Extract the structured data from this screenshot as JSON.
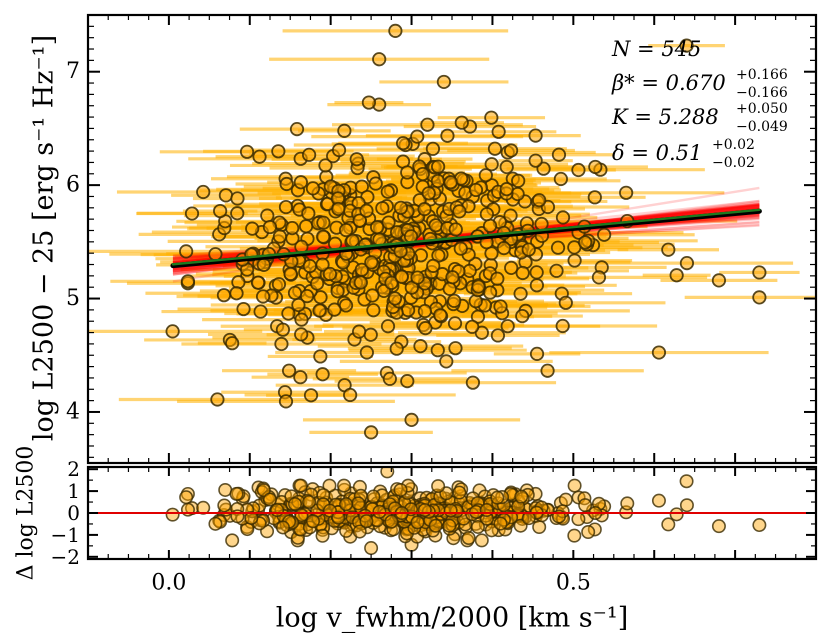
{
  "chart_data": [
    {
      "type": "scatter",
      "panel": "main",
      "ylabel": "log L2500 − 25 [erg s⁻¹ Hz⁻¹]",
      "xlim": [
        -0.1,
        0.8
      ],
      "ylim": [
        3.55,
        7.5
      ],
      "y_ticks": [
        {
          "value": 4,
          "label": "4"
        },
        {
          "value": 5,
          "label": "5"
        },
        {
          "value": 6,
          "label": "6"
        },
        {
          "value": 7,
          "label": "7"
        }
      ],
      "annotations": {
        "n": "N = 545",
        "beta": "β* = 0.670",
        "beta_err": [
          "+0.166",
          "−0.166"
        ],
        "k": "K = 5.288",
        "k_err": [
          "+0.050",
          "−0.049"
        ],
        "delta": "δ = 0.51",
        "delta_err": [
          "+0.02",
          "−0.02"
        ]
      },
      "fit_line": {
        "x": [
          0.005,
          0.73
        ],
        "y": [
          5.29,
          5.77
        ],
        "colors": {
          "best_fit": "#000000",
          "median": "#1f7a1f",
          "posterior_draws": "#ff0000"
        }
      },
      "colors": {
        "points": "#ffa500",
        "point_edge": "#3a2a00",
        "error_bars": "#ffb000"
      },
      "notable_points": [
        {
          "x": 0.28,
          "y": 7.36
        },
        {
          "x": 0.64,
          "y": 7.23
        },
        {
          "x": 0.26,
          "y": 7.11
        },
        {
          "x": 0.34,
          "y": 6.91
        },
        {
          "x": 0.26,
          "y": 6.71
        },
        {
          "x": 0.3,
          "y": 3.93
        },
        {
          "x": 0.25,
          "y": 3.82
        },
        {
          "x": 0.73,
          "y": 5.23
        },
        {
          "x": 0.73,
          "y": 5.01
        },
        {
          "x": 0.68,
          "y": 5.16
        },
        {
          "x": 0.06,
          "y": 4.11
        }
      ],
      "scatter_stats": {
        "n_points": 545,
        "x_mean": 0.29,
        "x_sd": 0.125,
        "intercept": 5.29,
        "slope": 0.67,
        "y_scatter_sd": 0.5,
        "x_error_range": [
          0.04,
          0.14
        ]
      }
    },
    {
      "type": "scatter",
      "panel": "residual",
      "xlabel": "log v_fwhm/2000 [km s⁻¹]",
      "ylabel": "Δ log L2500",
      "xlim": [
        -0.1,
        0.8
      ],
      "ylim": [
        -2.1,
        2.1
      ],
      "x_ticks": [
        {
          "value": 0.0,
          "label": "0.0"
        },
        {
          "value": 0.5,
          "label": "0.5"
        }
      ],
      "y_ticks": [
        {
          "value": -2,
          "label": "−2"
        },
        {
          "value": -1,
          "label": "−1"
        },
        {
          "value": 0,
          "label": "0"
        },
        {
          "value": 1,
          "label": "1"
        },
        {
          "value": 2,
          "label": "2"
        }
      ],
      "zero_line": {
        "y": 0,
        "color": "#e00000"
      },
      "residual_sd": 0.5,
      "residual_extremes": [
        {
          "x": 0.27,
          "y": 1.9
        },
        {
          "x": 0.64,
          "y": 1.45
        },
        {
          "x": 0.3,
          "y": -1.45
        },
        {
          "x": 0.25,
          "y": -1.6
        },
        {
          "x": 0.73,
          "y": -0.55
        },
        {
          "x": 0.68,
          "y": -0.6
        }
      ]
    }
  ]
}
